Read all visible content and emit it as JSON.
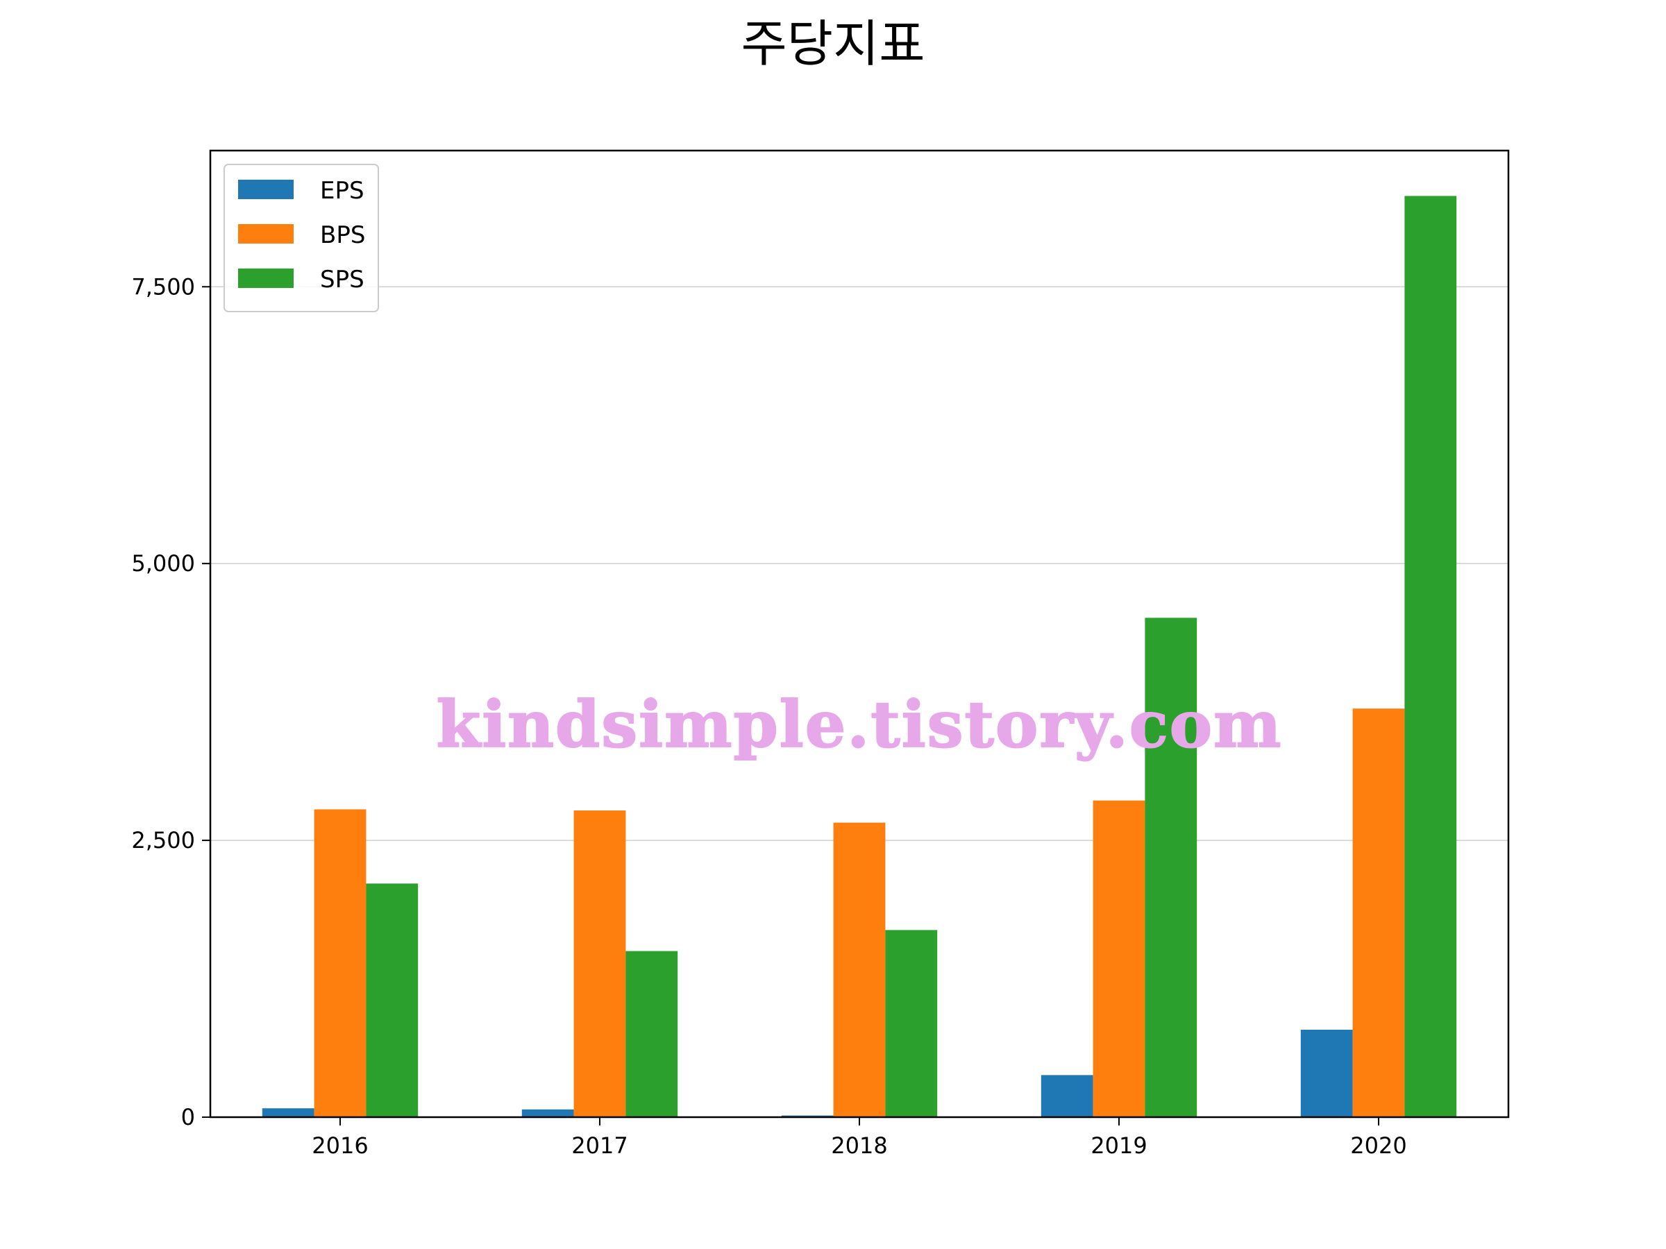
{
  "chart_data": {
    "type": "bar",
    "title": "주당지표",
    "xlabel": "",
    "ylabel": "",
    "categories": [
      "2016",
      "2017",
      "2018",
      "2019",
      "2020"
    ],
    "series": [
      {
        "name": "EPS",
        "color": "#1f77b4",
        "values": [
          80,
          70,
          15,
          380,
          790
        ]
      },
      {
        "name": "BPS",
        "color": "#ff7f0e",
        "values": [
          2780,
          2770,
          2660,
          2860,
          3690
        ]
      },
      {
        "name": "SPS",
        "color": "#2ca02c",
        "values": [
          2110,
          1500,
          1690,
          4510,
          8320
        ]
      }
    ],
    "ylim": [
      0,
      8730
    ],
    "yticks": [
      0,
      2500,
      5000,
      7500
    ],
    "ytick_labels": [
      "0",
      "2,500",
      "5,000",
      "7,500"
    ],
    "grid": "y",
    "legend_position": "top-left",
    "watermark": "kindsimple.tistory.com"
  }
}
